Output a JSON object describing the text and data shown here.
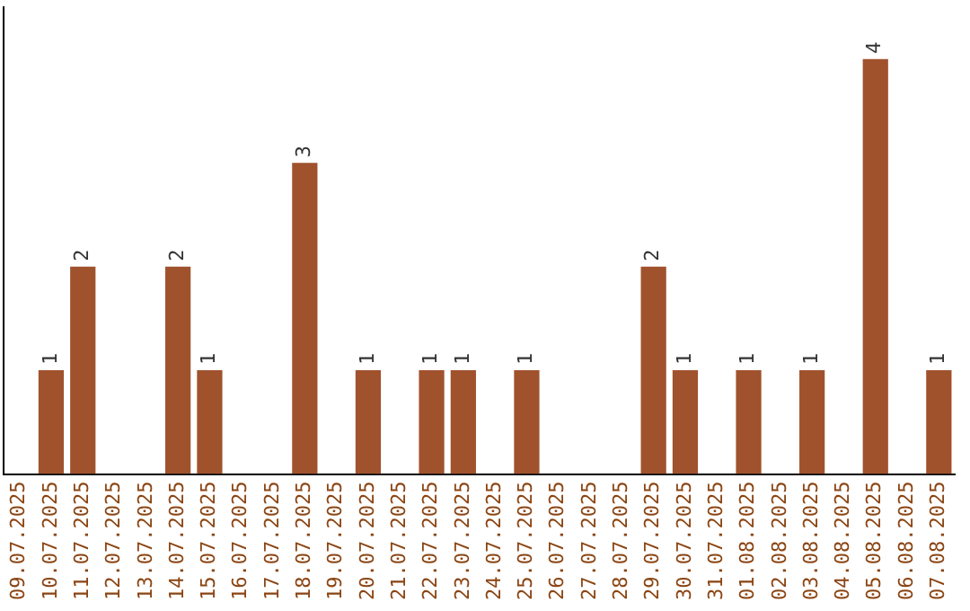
{
  "chart_data": {
    "type": "bar",
    "categories": [
      "09.07.2025",
      "10.07.2025",
      "11.07.2025",
      "12.07.2025",
      "13.07.2025",
      "14.07.2025",
      "15.07.2025",
      "16.07.2025",
      "17.07.2025",
      "18.07.2025",
      "19.07.2025",
      "20.07.2025",
      "21.07.2025",
      "22.07.2025",
      "23.07.2025",
      "24.07.2025",
      "25.07.2025",
      "26.07.2025",
      "27.07.2025",
      "28.07.2025",
      "29.07.2025",
      "30.07.2025",
      "31.07.2025",
      "01.08.2025",
      "02.08.2025",
      "03.08.2025",
      "04.08.2025",
      "05.08.2025",
      "06.08.2025",
      "07.08.2025"
    ],
    "values": [
      0,
      1,
      2,
      0,
      0,
      2,
      1,
      0,
      0,
      3,
      0,
      1,
      0,
      1,
      1,
      0,
      1,
      0,
      0,
      0,
      2,
      1,
      0,
      1,
      0,
      1,
      0,
      4,
      0,
      1
    ],
    "value_labels": [
      null,
      "1",
      "2",
      null,
      null,
      "2",
      "1",
      null,
      null,
      "3",
      null,
      "1",
      null,
      "1",
      "1",
      null,
      "1",
      null,
      null,
      null,
      "2",
      "1",
      null,
      "1",
      null,
      "1",
      null,
      "4",
      null,
      "1"
    ],
    "color": "#a0522d",
    "grid": false,
    "legend": false,
    "tick_labels": "x"
  }
}
